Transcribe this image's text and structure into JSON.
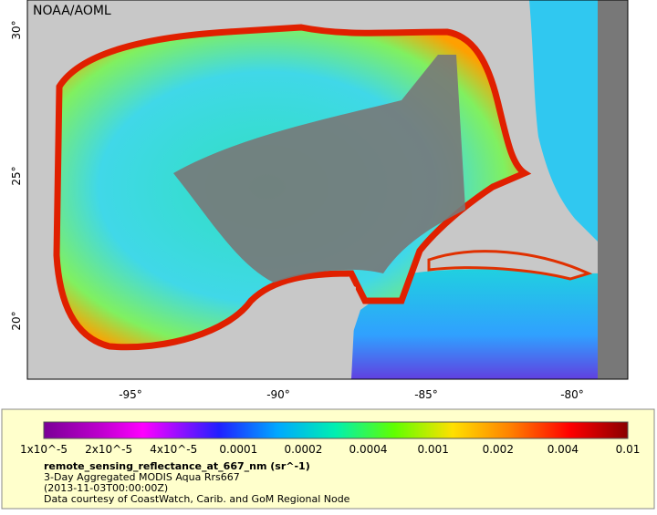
{
  "header": {
    "credit": "NOAA/AOML"
  },
  "map": {
    "lon_labels": [
      "-95°",
      "-90°",
      "-85°",
      "-80°"
    ],
    "lat_labels": [
      "30°",
      "25°",
      "20°"
    ]
  },
  "legend": {
    "tick_labels": [
      "1x10^-5",
      "2x10^-5",
      "4x10^-5",
      "0.0001",
      "0.0002",
      "0.0004",
      "0.001",
      "0.002",
      "0.004",
      "0.01"
    ],
    "variable": "remote_sensing_reflectance_at_667_nm (sr^-1)",
    "lines": [
      "3-Day Aggregated MODIS Aqua Rrs667",
      "(2013-11-03T00:00:00Z)",
      "Data courtesy of CoastWatch, Carib. and GoM Regional Node"
    ]
  }
}
